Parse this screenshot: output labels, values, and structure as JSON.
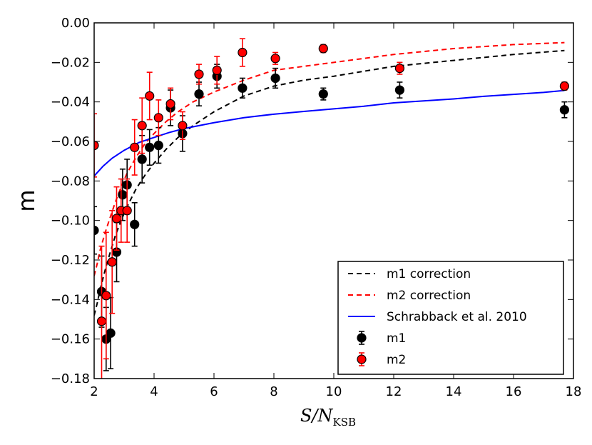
{
  "chart_data": {
    "type": "scatter",
    "title": "",
    "xlabel_main": "S/N",
    "xlabel_sub": "KSB",
    "ylabel": "m",
    "xlim": [
      2,
      18
    ],
    "ylim": [
      -0.18,
      0.0
    ],
    "x_ticks": [
      2,
      4,
      6,
      8,
      10,
      12,
      14,
      16,
      18
    ],
    "x_tick_labels": [
      "2",
      "4",
      "6",
      "8",
      "10",
      "12",
      "14",
      "16",
      "18"
    ],
    "y_ticks": [
      0.0,
      -0.02,
      -0.04,
      -0.06,
      -0.08,
      -0.1,
      -0.12,
      -0.14,
      -0.16,
      -0.18
    ],
    "y_tick_labels": [
      "0.00",
      "−0.02",
      "−0.04",
      "−0.06",
      "−0.08",
      "−0.10",
      "−0.12",
      "−0.14",
      "−0.16",
      "−0.18"
    ],
    "legend_position": "lower-right",
    "lines": [
      {
        "name": "m1 correction",
        "label": "m1 correction",
        "color": "#000000",
        "dash": "dashed",
        "x": [
          2.0,
          2.1,
          2.2,
          2.35,
          2.5,
          2.7,
          2.9,
          3.1,
          3.4,
          3.7,
          4.0,
          4.4,
          4.8,
          5.3,
          6.0,
          7.0,
          8.0,
          9.0,
          10.0,
          12.0,
          14.0,
          16.0,
          17.7
        ],
        "y": [
          -0.148,
          -0.142,
          -0.135,
          -0.126,
          -0.118,
          -0.108,
          -0.1,
          -0.093,
          -0.084,
          -0.077,
          -0.071,
          -0.064,
          -0.058,
          -0.052,
          -0.045,
          -0.037,
          -0.032,
          -0.029,
          -0.027,
          -0.022,
          -0.019,
          -0.016,
          -0.014
        ]
      },
      {
        "name": "m2 correction",
        "label": "m2 correction",
        "color": "#ff0000",
        "dash": "dashed",
        "x": [
          2.0,
          2.1,
          2.2,
          2.35,
          2.5,
          2.7,
          2.9,
          3.1,
          3.4,
          3.7,
          4.0,
          4.4,
          4.8,
          5.3,
          6.0,
          7.0,
          8.0,
          9.0,
          10.0,
          12.0,
          14.0,
          16.0,
          17.7
        ],
        "y": [
          -0.128,
          -0.122,
          -0.115,
          -0.107,
          -0.1,
          -0.091,
          -0.083,
          -0.076,
          -0.068,
          -0.061,
          -0.056,
          -0.05,
          -0.045,
          -0.04,
          -0.035,
          -0.029,
          -0.024,
          -0.022,
          -0.02,
          -0.016,
          -0.013,
          -0.011,
          -0.01
        ]
      },
      {
        "name": "Schrabback et al. 2010",
        "label": "Schrabback et al. 2010",
        "color": "#0000ff",
        "dash": "solid",
        "x": [
          2.0,
          2.3,
          2.6,
          3.0,
          3.5,
          4.0,
          4.5,
          5.0,
          6.0,
          7.0,
          8.0,
          9.0,
          10.0,
          11.0,
          12.0,
          13.0,
          14.0,
          15.0,
          16.0,
          17.0,
          17.7
        ],
        "y": [
          -0.0775,
          -0.0725,
          -0.0685,
          -0.0645,
          -0.0605,
          -0.058,
          -0.0555,
          -0.0535,
          -0.0505,
          -0.048,
          -0.0462,
          -0.0448,
          -0.0435,
          -0.0422,
          -0.0405,
          -0.0395,
          -0.0385,
          -0.0372,
          -0.0362,
          -0.0352,
          -0.0342
        ]
      }
    ],
    "series": [
      {
        "name": "m1",
        "label": "m1",
        "color": "#000000",
        "err_color": "#000000",
        "x": [
          2.0,
          2.25,
          2.4,
          2.55,
          2.75,
          2.95,
          3.1,
          3.35,
          3.6,
          3.85,
          4.15,
          4.55,
          4.95,
          5.5,
          6.1,
          6.95,
          8.05,
          9.65,
          12.2,
          17.7
        ],
        "y": [
          -0.105,
          -0.136,
          -0.16,
          -0.157,
          -0.116,
          -0.087,
          -0.082,
          -0.102,
          -0.069,
          -0.063,
          -0.062,
          -0.043,
          -0.056,
          -0.036,
          -0.027,
          -0.033,
          -0.028,
          -0.036,
          -0.034,
          -0.044
        ],
        "err": [
          0.012,
          0.018,
          0.016,
          0.018,
          0.015,
          0.013,
          0.013,
          0.011,
          0.012,
          0.009,
          0.009,
          0.009,
          0.009,
          0.006,
          0.006,
          0.005,
          0.005,
          0.003,
          0.004,
          0.004
        ]
      },
      {
        "name": "m2",
        "label": "m2",
        "color": "#ff0000",
        "err_color": "#ff0000",
        "x": [
          2.0,
          2.25,
          2.4,
          2.6,
          2.75,
          2.9,
          3.1,
          3.35,
          3.6,
          3.85,
          4.15,
          4.55,
          4.95,
          5.5,
          6.1,
          6.95,
          8.05,
          9.65,
          12.2,
          17.7
        ],
        "y": [
          -0.062,
          -0.151,
          -0.138,
          -0.121,
          -0.099,
          -0.095,
          -0.095,
          -0.063,
          -0.052,
          -0.037,
          -0.048,
          -0.041,
          -0.052,
          -0.026,
          -0.024,
          -0.015,
          -0.018,
          -0.013,
          -0.023,
          -0.032
        ],
        "err": [
          0.016,
          0.038,
          0.032,
          0.026,
          0.016,
          0.016,
          0.016,
          0.014,
          0.014,
          0.012,
          0.009,
          0.008,
          0.007,
          0.005,
          0.007,
          0.007,
          0.003,
          0.002,
          0.003,
          0.002
        ]
      }
    ]
  }
}
